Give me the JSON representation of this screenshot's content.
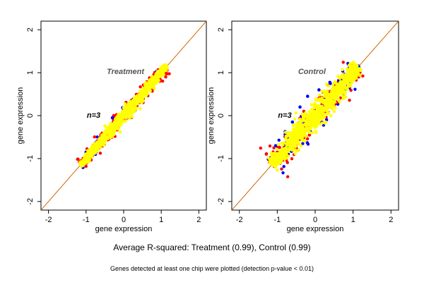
{
  "chart_data": [
    {
      "type": "scatter",
      "title": "Treatment",
      "annotation": "n=3",
      "xlabel": "gene expression",
      "ylabel": "gene expression",
      "xlim": [
        -2.2,
        2.2
      ],
      "ylim": [
        -2.2,
        2.2
      ],
      "xticks": [
        -2,
        -1,
        0,
        1,
        2
      ],
      "yticks": [
        -2,
        -1,
        0,
        1,
        2
      ],
      "tick_labels": [
        "-2",
        "-1",
        "0",
        "1",
        "2"
      ],
      "spread": 0.055,
      "series": [
        {
          "color": "#0000ff",
          "points": [
            [
              -0.3,
              -0.05
            ],
            [
              0.25,
              0.38
            ],
            [
              0.9,
              0.92
            ],
            [
              -0.75,
              -0.9
            ],
            [
              0.55,
              0.6
            ]
          ]
        },
        {
          "color": "#ff0000",
          "points": [
            [
              -1.0,
              -1.05
            ],
            [
              -0.6,
              -0.45
            ],
            [
              -0.2,
              -0.1
            ],
            [
              0.2,
              0.35
            ],
            [
              0.6,
              0.5
            ],
            [
              0.8,
              0.95
            ],
            [
              -0.4,
              -0.55
            ],
            [
              0.1,
              -0.05
            ],
            [
              1.0,
              1.02
            ],
            [
              -0.8,
              -0.7
            ]
          ]
        },
        {
          "color": "#ffff00",
          "range": [
            -1.15,
            1.15
          ]
        }
      ],
      "reference_line": {
        "slope": 1,
        "intercept": 0,
        "color": "#d26400"
      }
    },
    {
      "type": "scatter",
      "title": "Control",
      "annotation": "n=3",
      "xlabel": "gene expression",
      "ylabel": "gene expression",
      "xlim": [
        -2.2,
        2.2
      ],
      "ylim": [
        -2.2,
        2.2
      ],
      "xticks": [
        -2,
        -1,
        0,
        1,
        2
      ],
      "yticks": [
        -2,
        -1,
        0,
        1,
        2
      ],
      "tick_labels": [
        "-2",
        "-1",
        "0",
        "1",
        "2"
      ],
      "spread": 0.11,
      "series": [
        {
          "color": "#0000ff",
          "points": [
            [
              -0.6,
              -0.15
            ],
            [
              -0.2,
              0.45
            ],
            [
              0.1,
              0.6
            ],
            [
              0.4,
              0.75
            ],
            [
              -0.75,
              -0.95
            ],
            [
              0.3,
              -0.1
            ],
            [
              0.75,
              0.55
            ],
            [
              -0.4,
              0.2
            ],
            [
              0.9,
              1.0
            ],
            [
              -1.1,
              -1.1
            ]
          ]
        },
        {
          "color": "#ff0000",
          "points": [
            [
              -1.0,
              -0.85
            ],
            [
              -0.7,
              -0.4
            ],
            [
              -0.3,
              0.1
            ],
            [
              0.2,
              0.55
            ],
            [
              0.5,
              0.25
            ],
            [
              0.8,
              0.95
            ],
            [
              -0.5,
              -0.75
            ],
            [
              0.0,
              -0.2
            ],
            [
              1.1,
              1.05
            ],
            [
              -0.85,
              -1.0
            ],
            [
              0.35,
              0.7
            ],
            [
              -0.15,
              -0.45
            ]
          ]
        },
        {
          "color": "#ffff00",
          "range": [
            -1.15,
            1.15
          ]
        }
      ],
      "reference_line": {
        "slope": 1,
        "intercept": 0,
        "color": "#d26400"
      }
    }
  ],
  "captions": {
    "main": "Average R-squared: Treatment (0.99), Control (0.99)",
    "sub": "Genes detected at least one chip were plotted (detection p-value < 0.01)"
  }
}
